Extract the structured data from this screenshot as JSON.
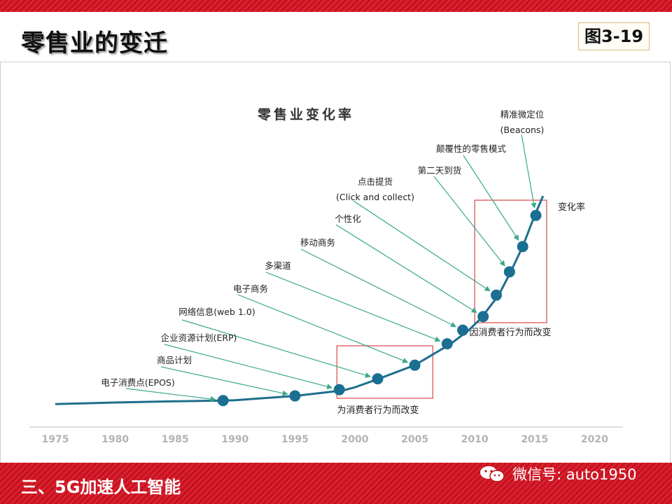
{
  "slide": {
    "title": "零售业的变迁",
    "figure_label": "图3-19",
    "bottom_title": "三、5G加速人工智能",
    "wechat_text": "微信号: auto1950"
  },
  "colors": {
    "band_red": "#c8101e",
    "curve": "#1f6e8c",
    "dot": "#1a6f93",
    "arrow": "#3aa88a",
    "box": "#e06b6b"
  },
  "icons": {
    "wechat": "wechat-icon"
  },
  "chart_data": {
    "type": "line",
    "title": "零售业变化率",
    "series_label": "变化率",
    "x_ticks": [
      1975,
      1980,
      1985,
      1990,
      1995,
      2000,
      2005,
      2010,
      2015,
      2020
    ],
    "curve": [
      [
        1975,
        0.5
      ],
      [
        1980,
        0.9
      ],
      [
        1985,
        1.2
      ],
      [
        1989,
        1.4
      ],
      [
        1990,
        1.5
      ],
      [
        1995,
        2.6
      ],
      [
        1999,
        4.0
      ],
      [
        2000,
        4.8
      ],
      [
        2002,
        7.0
      ],
      [
        2005,
        10.5
      ],
      [
        2008,
        16.0
      ],
      [
        2009.5,
        19.5
      ],
      [
        2010.5,
        22.5
      ],
      [
        2012,
        28.5
      ],
      [
        2013,
        34.5
      ],
      [
        2014,
        41.0
      ],
      [
        2015,
        49.0
      ],
      [
        2015.7,
        54.0
      ]
    ],
    "points": [
      {
        "x": 1989,
        "y": 1.4,
        "label": "电子消费点(EPOS)"
      },
      {
        "x": 1995,
        "y": 2.6,
        "label": "商品计划"
      },
      {
        "x": 1998.7,
        "y": 4.2,
        "label": "企业资源计划(ERP)"
      },
      {
        "x": 2001.9,
        "y": 7.0,
        "label": "网络信息(web 1.0)"
      },
      {
        "x": 2005,
        "y": 10.5,
        "label": "电子商务"
      },
      {
        "x": 2007.7,
        "y": 16.0,
        "label": "多渠道"
      },
      {
        "x": 2009,
        "y": 19.5,
        "label": "移动商务"
      },
      {
        "x": 2010.7,
        "y": 23.0,
        "label": "个性化"
      },
      {
        "x": 2011.8,
        "y": 28.5,
        "label": "点击提货",
        "label2": "(Click and collect)"
      },
      {
        "x": 2012.9,
        "y": 34.5,
        "label": "第二天到货"
      },
      {
        "x": 2014,
        "y": 41.0,
        "label": "颠覆性的零售模式"
      },
      {
        "x": 2015.1,
        "y": 49.0,
        "label": "精准微定位",
        "label2": "(Beacons)"
      }
    ],
    "boxes": [
      {
        "x0": 1998.5,
        "x1": 2006.5,
        "label": "为消费者行为而改变"
      },
      {
        "x0": 2010,
        "x1": 2016,
        "label": "因消费者行为而改变"
      }
    ]
  }
}
